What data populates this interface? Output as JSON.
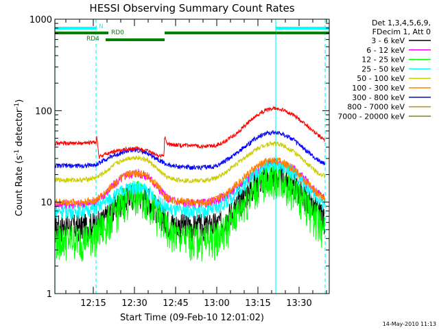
{
  "title": "HESSI Observing Summary Count Rates",
  "footer_date": "14-May-2010 11:13",
  "chart_data": {
    "type": "line",
    "title": "HESSI Observing Summary Count Rates",
    "xlabel": "Start Time (09-Feb-10 12:01:02)",
    "ylabel": "Count Rate (s",
    "ylabel_sup": "-1",
    "ylabel_tail": " detector",
    "ylabel_sup2": "-1",
    "ylabel_close": ")",
    "y_scale": "log",
    "ylim": [
      1,
      1000
    ],
    "xlim_min": [
      0,
      100
    ],
    "y_ticks": [
      {
        "value": 1,
        "label": "1"
      },
      {
        "value": 10,
        "label": "10"
      },
      {
        "value": 100,
        "label": "100"
      },
      {
        "value": 1000,
        "label": "1000"
      }
    ],
    "x_ticks": [
      {
        "value": 14,
        "label": "12:15"
      },
      {
        "value": 29,
        "label": "12:30"
      },
      {
        "value": 44,
        "label": "12:45"
      },
      {
        "value": 59,
        "label": "13:00"
      },
      {
        "value": 74,
        "label": "13:15"
      },
      {
        "value": 89,
        "label": "13:30"
      }
    ],
    "legend": {
      "header": [
        "Det 1,3,4,5,6,9,",
        "FDecim 1, Att 0"
      ],
      "placement": "right"
    },
    "flag_bars": [
      {
        "label": "N",
        "color": "#00ffff",
        "segments": [
          [
            0,
            15.3
          ],
          [
            80.5,
            100
          ]
        ]
      },
      {
        "label": "RD0",
        "color": "#008000",
        "segments": [
          [
            0,
            19.5
          ],
          [
            40,
            100
          ]
        ]
      },
      {
        "label": "RD4",
        "color": "#008000",
        "segments": [
          [
            18.5,
            40
          ]
        ]
      }
    ],
    "vlines": [
      {
        "x": 0,
        "color": "#00ffff",
        "style": "solid"
      },
      {
        "x": 15,
        "color": "#00ffff",
        "style": "dashed"
      },
      {
        "x": 80.5,
        "color": "#00ffff",
        "style": "solid"
      },
      {
        "x": 98.5,
        "color": "#00ffff",
        "style": "dashed"
      }
    ],
    "series": [
      {
        "name": "3 - 6 keV",
        "color": "#000000",
        "points": [
          [
            0,
            5.5
          ],
          [
            5,
            5.5
          ],
          [
            10,
            5.5
          ],
          [
            15,
            5.8
          ],
          [
            18,
            6.5
          ],
          [
            22,
            9
          ],
          [
            26,
            11.5
          ],
          [
            30,
            12.5
          ],
          [
            34,
            11
          ],
          [
            38,
            8
          ],
          [
            41,
            6.2
          ],
          [
            45,
            5.6
          ],
          [
            50,
            5.5
          ],
          [
            55,
            5.5
          ],
          [
            59,
            5.8
          ],
          [
            62,
            6.5
          ],
          [
            66,
            9
          ],
          [
            70,
            13
          ],
          [
            74,
            17
          ],
          [
            77,
            19.5
          ],
          [
            80,
            20
          ],
          [
            83,
            19
          ],
          [
            87,
            16
          ],
          [
            91,
            12
          ],
          [
            95,
            8.5
          ],
          [
            98.5,
            6.5
          ]
        ]
      },
      {
        "name": "6 - 12 keV",
        "color": "#ff00ff",
        "points": [
          [
            0,
            9.5
          ],
          [
            5,
            9.5
          ],
          [
            10,
            9.5
          ],
          [
            15,
            10
          ],
          [
            18,
            12
          ],
          [
            22,
            16
          ],
          [
            26,
            20
          ],
          [
            30,
            21
          ],
          [
            34,
            19
          ],
          [
            38,
            14
          ],
          [
            41,
            11
          ],
          [
            45,
            10
          ],
          [
            50,
            9.7
          ],
          [
            55,
            9.7
          ],
          [
            59,
            10.5
          ],
          [
            62,
            11.5
          ],
          [
            66,
            14
          ],
          [
            70,
            18
          ],
          [
            74,
            22
          ],
          [
            77,
            26
          ],
          [
            80,
            27
          ],
          [
            83,
            26
          ],
          [
            87,
            23
          ],
          [
            91,
            18
          ],
          [
            95,
            13
          ],
          [
            98.5,
            11
          ]
        ]
      },
      {
        "name": "12 - 25 keV",
        "color": "#00ff00",
        "points": [
          [
            0,
            4
          ],
          [
            5,
            4
          ],
          [
            10,
            4
          ],
          [
            15,
            4.5
          ],
          [
            18,
            5.5
          ],
          [
            22,
            8
          ],
          [
            26,
            11
          ],
          [
            30,
            12
          ],
          [
            34,
            10.5
          ],
          [
            38,
            7
          ],
          [
            41,
            5
          ],
          [
            45,
            4.2
          ],
          [
            50,
            4
          ],
          [
            55,
            4
          ],
          [
            59,
            4.2
          ],
          [
            62,
            5
          ],
          [
            66,
            7.5
          ],
          [
            70,
            11
          ],
          [
            74,
            15
          ],
          [
            77,
            18
          ],
          [
            80,
            19
          ],
          [
            83,
            17.5
          ],
          [
            87,
            14
          ],
          [
            91,
            10
          ],
          [
            95,
            7
          ],
          [
            98.5,
            5
          ]
        ]
      },
      {
        "name": "25 - 50 keV",
        "color": "#00ffff",
        "points": [
          [
            0,
            8
          ],
          [
            5,
            8
          ],
          [
            10,
            8
          ],
          [
            15,
            8.5
          ],
          [
            18,
            10
          ],
          [
            22,
            12
          ],
          [
            26,
            14
          ],
          [
            30,
            15
          ],
          [
            34,
            13
          ],
          [
            38,
            10
          ],
          [
            41,
            8.5
          ],
          [
            45,
            8
          ],
          [
            50,
            8
          ],
          [
            55,
            8
          ],
          [
            59,
            8.5
          ],
          [
            62,
            10
          ],
          [
            66,
            12.5
          ],
          [
            70,
            17
          ],
          [
            74,
            22
          ],
          [
            77,
            25
          ],
          [
            80,
            26
          ],
          [
            83,
            25
          ],
          [
            87,
            21
          ],
          [
            91,
            16
          ],
          [
            95,
            11.5
          ],
          [
            98.5,
            9.5
          ]
        ]
      },
      {
        "name": "50 - 100 keV",
        "color": "#cccc00",
        "points": [
          [
            0,
            17.5
          ],
          [
            5,
            17.5
          ],
          [
            10,
            17.5
          ],
          [
            15,
            18.5
          ],
          [
            18,
            21
          ],
          [
            22,
            26
          ],
          [
            26,
            30
          ],
          [
            30,
            31
          ],
          [
            34,
            28.5
          ],
          [
            38,
            22
          ],
          [
            41,
            18.5
          ],
          [
            45,
            17.5
          ],
          [
            50,
            17.2
          ],
          [
            55,
            17.2
          ],
          [
            59,
            18.5
          ],
          [
            62,
            21
          ],
          [
            66,
            26
          ],
          [
            70,
            32
          ],
          [
            74,
            39
          ],
          [
            77,
            43
          ],
          [
            80,
            44
          ],
          [
            83,
            42
          ],
          [
            87,
            36
          ],
          [
            91,
            28
          ],
          [
            95,
            22
          ],
          [
            98.5,
            19
          ]
        ]
      },
      {
        "name": "100 - 300 keV",
        "color": "#ff8000",
        "points": [
          [
            0,
            10
          ],
          [
            5,
            10
          ],
          [
            10,
            10
          ],
          [
            15,
            10.5
          ],
          [
            18,
            12.5
          ],
          [
            22,
            16.5
          ],
          [
            26,
            20
          ],
          [
            30,
            21
          ],
          [
            34,
            19
          ],
          [
            38,
            14.5
          ],
          [
            41,
            11
          ],
          [
            45,
            10.2
          ],
          [
            50,
            10
          ],
          [
            55,
            10
          ],
          [
            59,
            10.8
          ],
          [
            62,
            12.5
          ],
          [
            66,
            15.5
          ],
          [
            70,
            20
          ],
          [
            74,
            25
          ],
          [
            77,
            28
          ],
          [
            80,
            29
          ],
          [
            83,
            27.5
          ],
          [
            87,
            23
          ],
          [
            91,
            17.5
          ],
          [
            95,
            13
          ],
          [
            98.5,
            10.5
          ]
        ]
      },
      {
        "name": "300 - 800 keV",
        "color": "#0000ff",
        "points": [
          [
            0,
            25
          ],
          [
            5,
            25
          ],
          [
            10,
            25
          ],
          [
            15,
            25.5
          ],
          [
            18,
            29
          ],
          [
            22,
            33
          ],
          [
            26,
            36
          ],
          [
            30,
            37
          ],
          [
            34,
            34
          ],
          [
            38,
            29
          ],
          [
            41,
            25.5
          ],
          [
            45,
            24.5
          ],
          [
            50,
            24
          ],
          [
            55,
            24
          ],
          [
            59,
            25
          ],
          [
            62,
            28
          ],
          [
            66,
            34
          ],
          [
            70,
            42
          ],
          [
            74,
            52
          ],
          [
            77,
            57
          ],
          [
            80,
            58
          ],
          [
            83,
            56
          ],
          [
            87,
            48
          ],
          [
            91,
            38
          ],
          [
            95,
            30
          ],
          [
            98.5,
            26
          ]
        ]
      },
      {
        "name": "800 - 7000 keV",
        "color": "#cc8800",
        "points": []
      },
      {
        "name": "7000 - 20000 keV",
        "color": "#808000",
        "points": []
      },
      {
        "name": "",
        "color": "#ff0000",
        "points": [
          [
            0,
            44
          ],
          [
            5,
            44
          ],
          [
            10,
            44
          ],
          [
            15,
            45
          ],
          [
            15.3,
            53
          ],
          [
            16,
            31
          ],
          [
            18,
            33
          ],
          [
            22,
            36
          ],
          [
            26,
            38
          ],
          [
            30,
            38.5
          ],
          [
            34,
            36
          ],
          [
            38,
            32
          ],
          [
            39.8,
            32
          ],
          [
            40,
            53
          ],
          [
            41,
            43
          ],
          [
            45,
            42
          ],
          [
            50,
            41
          ],
          [
            55,
            41
          ],
          [
            59,
            42
          ],
          [
            62,
            46
          ],
          [
            66,
            56
          ],
          [
            70,
            72
          ],
          [
            74,
            90
          ],
          [
            77,
            102
          ],
          [
            80,
            106
          ],
          [
            83,
            102
          ],
          [
            87,
            90
          ],
          [
            91,
            72
          ],
          [
            95,
            57
          ],
          [
            98.5,
            47
          ]
        ]
      }
    ]
  }
}
